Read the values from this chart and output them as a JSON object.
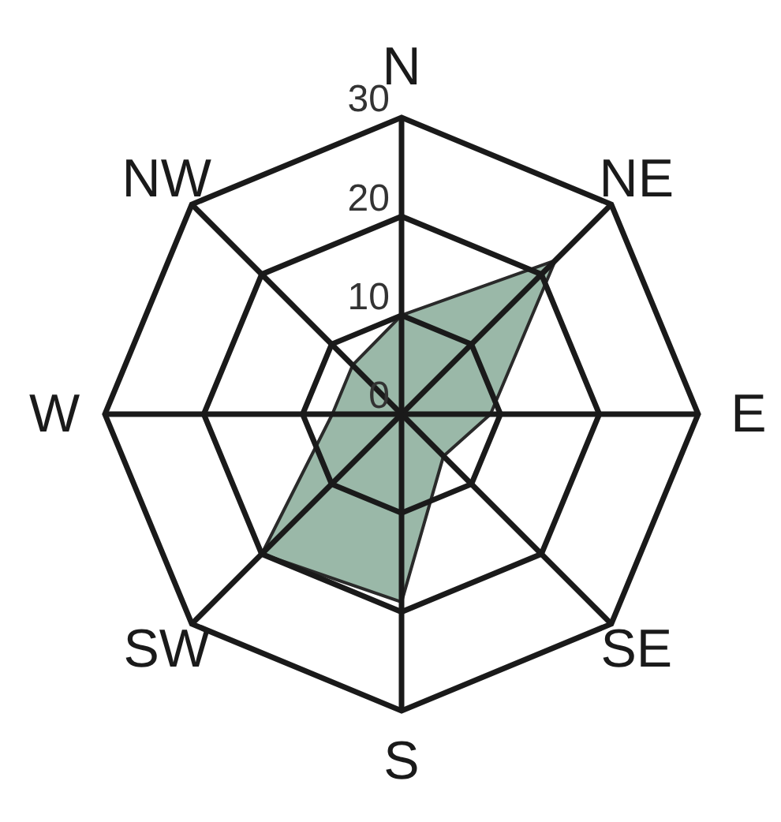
{
  "chart_data": {
    "type": "radar",
    "categories": [
      "N",
      "NE",
      "E",
      "SE",
      "S",
      "SW",
      "W",
      "NW"
    ],
    "series": [
      {
        "color": "#9ab8a8",
        "values": [
          10,
          22,
          9,
          6,
          19,
          20,
          7,
          7
        ]
      }
    ],
    "ylim": [
      0,
      30
    ],
    "yticks": [
      0,
      10,
      20,
      30
    ],
    "grid": true
  }
}
